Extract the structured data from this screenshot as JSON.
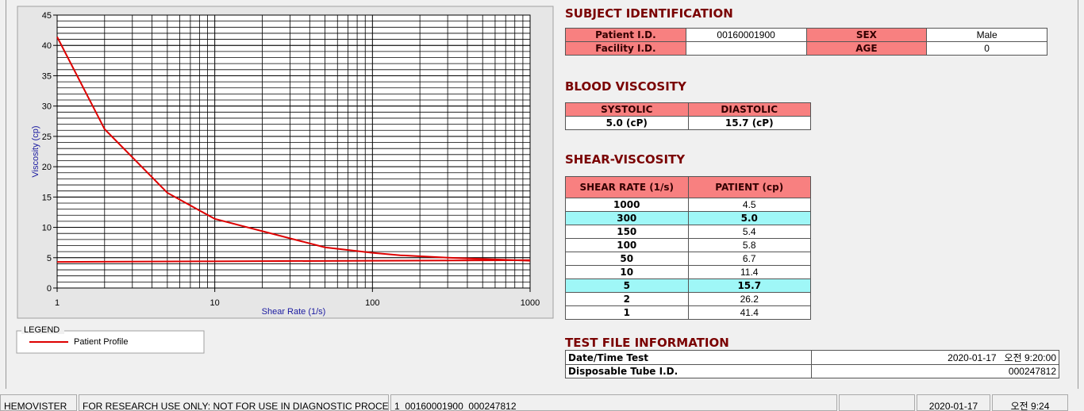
{
  "chart_data": {
    "type": "line",
    "xlabel": "Shear Rate (1/s)",
    "ylabel": "Viscosity (cp)",
    "xscale": "log",
    "xlim": [
      1,
      1000
    ],
    "xticks": [
      1,
      10,
      100,
      1000
    ],
    "ylim": [
      0,
      45
    ],
    "yticks": [
      0,
      5,
      10,
      15,
      20,
      25,
      30,
      35,
      40,
      45
    ],
    "grid": true,
    "legend_title": "LEGEND",
    "series": [
      {
        "name": "Patient Profile",
        "color": "#dd0000",
        "x": [
          1,
          2,
          5,
          10,
          50,
          100,
          150,
          300,
          1000
        ],
        "values": [
          41.4,
          26.2,
          15.7,
          11.4,
          6.7,
          5.8,
          5.4,
          5.0,
          4.5
        ]
      },
      {
        "color": "#dd0000",
        "x": [
          1,
          10,
          100,
          1000
        ],
        "values": [
          4.3,
          4.4,
          4.5,
          4.6
        ]
      }
    ]
  },
  "subject_identification": {
    "title": "SUBJECT IDENTIFICATION",
    "fields": [
      {
        "label": "Patient I.D.",
        "value": "00160001900"
      },
      {
        "label": "SEX",
        "value": "Male"
      },
      {
        "label": "Facility I.D."
      },
      {
        "label": "AGE",
        "value": "0"
      }
    ]
  },
  "blood_viscosity": {
    "title": "BLOOD VISCOSITY",
    "headers": [
      "SYSTOLIC",
      "DIASTOLIC"
    ],
    "values": [
      "5.0 (cP)",
      "15.7 (cP)"
    ]
  },
  "shear_viscosity": {
    "title": "SHEAR-VISCOSITY",
    "headers": [
      "SHEAR RATE (1/s)",
      "PATIENT (cp)"
    ],
    "rows": [
      [
        "1000",
        "4.5"
      ],
      [
        "300",
        "5.0"
      ],
      [
        "150",
        "5.4"
      ],
      [
        "100",
        "5.8"
      ],
      [
        "50",
        "6.7"
      ],
      [
        "10",
        "11.4"
      ],
      [
        "5",
        "15.7"
      ],
      [
        "2",
        "26.2"
      ],
      [
        "1",
        "41.4"
      ]
    ]
  },
  "test_file": {
    "title": "TEST FILE INFORMATION",
    "rows": [
      [
        "Date/Time Test",
        "2020-01-17   오전 9:20:00"
      ],
      [
        "Disposable Tube I.D.",
        "000247812"
      ]
    ]
  },
  "status_bar": [
    "HEMOVISTER",
    "FOR RESEARCH USE ONLY: NOT FOR USE IN DIAGNOSTIC PROCEDURES",
    "1  00160001900  000247812",
    "2020-01-17",
    "오전 9:24"
  ]
}
